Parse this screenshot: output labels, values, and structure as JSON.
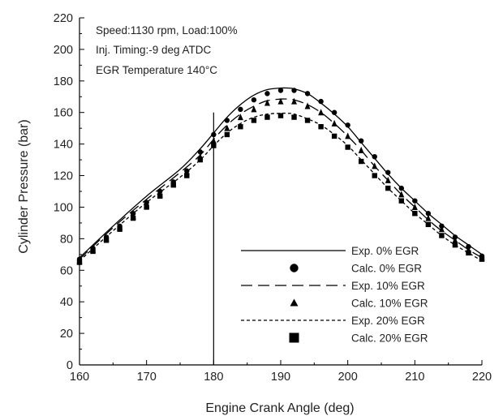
{
  "chart_data": {
    "type": "line",
    "title": "",
    "xlabel": "Engine Crank Angle (deg)",
    "ylabel": "Cylinder Pressure (bar)",
    "xlim": [
      160,
      220
    ],
    "ylim": [
      0,
      220
    ],
    "xticks": [
      160,
      170,
      180,
      190,
      200,
      210,
      220
    ],
    "yticks": [
      0,
      20,
      40,
      60,
      80,
      100,
      120,
      140,
      160,
      180,
      200,
      220
    ],
    "grid": false,
    "legend_position": "bottom-right",
    "annotations": [
      "Speed:1130 rpm, Load:100%",
      "Inj. Timing:-9 deg ATDC",
      "EGR Temperature 140°C"
    ],
    "vertical_marker": {
      "x": 180,
      "y_top": 160
    },
    "series": [
      {
        "name": "Exp. 0% EGR",
        "style": "solid",
        "color": "#000000",
        "x": [
          160,
          165,
          170,
          175,
          178,
          180,
          182,
          184,
          186,
          188,
          190,
          191,
          192,
          194,
          196,
          198,
          200,
          202,
          204,
          206,
          208,
          210,
          212,
          214,
          216,
          218,
          220
        ],
        "y": [
          68,
          88,
          107,
          124,
          137,
          147,
          157,
          165,
          171,
          174.5,
          175.5,
          175.5,
          175,
          172,
          166,
          159,
          151,
          141,
          131,
          121,
          112,
          104,
          96,
          89,
          82,
          76,
          70
        ]
      },
      {
        "name": "Calc. 0% EGR",
        "style": "marker",
        "marker": "circle",
        "color": "#000000",
        "x": [
          160,
          162,
          164,
          166,
          168,
          170,
          172,
          174,
          176,
          178,
          180,
          182,
          184,
          186,
          188,
          190,
          192,
          194,
          196,
          198,
          200,
          202,
          204,
          206,
          208,
          210,
          212,
          214,
          216,
          218,
          220
        ],
        "y": [
          67,
          74,
          81,
          88,
          96,
          103,
          110,
          116,
          123,
          135,
          146,
          155,
          162,
          168,
          172,
          174,
          174,
          172,
          167,
          160,
          152,
          142,
          132,
          122,
          112,
          104,
          96,
          88,
          81,
          75,
          69
        ]
      },
      {
        "name": "Exp. 10% EGR",
        "style": "longdash",
        "color": "#000000",
        "x": [
          160,
          165,
          170,
          175,
          178,
          180,
          182,
          184,
          186,
          188,
          190,
          191,
          192,
          194,
          196,
          198,
          200,
          202,
          204,
          206,
          208,
          210,
          212,
          214,
          216,
          218,
          220
        ],
        "y": [
          67,
          87,
          105,
          122,
          133,
          143,
          152,
          159,
          164,
          167.5,
          168.5,
          168.5,
          168,
          165,
          160,
          153,
          145,
          136,
          126,
          117,
          108,
          100,
          92,
          85,
          79,
          73,
          68
        ]
      },
      {
        "name": "Calc. 10% EGR",
        "style": "marker",
        "marker": "triangle",
        "color": "#000000",
        "x": [
          160,
          162,
          164,
          166,
          168,
          170,
          172,
          174,
          176,
          178,
          180,
          182,
          184,
          186,
          188,
          190,
          192,
          194,
          196,
          198,
          200,
          202,
          204,
          206,
          208,
          210,
          212,
          214,
          216,
          218,
          220
        ],
        "y": [
          66,
          73,
          80,
          87,
          94,
          101,
          108,
          115,
          122,
          132,
          142,
          150,
          157,
          162,
          166,
          167,
          167,
          164,
          160,
          153,
          145,
          136,
          126,
          117,
          108,
          100,
          93,
          86,
          79,
          73,
          68
        ]
      },
      {
        "name": "Exp. 20% EGR",
        "style": "shortdash",
        "color": "#000000",
        "x": [
          160,
          165,
          170,
          175,
          178,
          180,
          182,
          184,
          186,
          188,
          190,
          191,
          192,
          194,
          196,
          198,
          200,
          202,
          204,
          206,
          208,
          210,
          212,
          214,
          216,
          218,
          220
        ],
        "y": [
          66,
          85,
          103,
          119,
          130,
          139,
          147,
          153,
          157,
          159,
          159.5,
          159.5,
          159,
          156,
          152,
          146,
          139,
          130,
          121,
          112,
          104,
          96,
          89,
          82,
          76,
          71,
          66
        ]
      },
      {
        "name": "Calc. 20% EGR",
        "style": "marker",
        "marker": "square",
        "color": "#000000",
        "x": [
          160,
          162,
          164,
          166,
          168,
          170,
          172,
          174,
          176,
          178,
          180,
          182,
          184,
          186,
          188,
          190,
          192,
          194,
          196,
          198,
          200,
          202,
          204,
          206,
          208,
          210,
          212,
          214,
          216,
          218,
          220
        ],
        "y": [
          65,
          72,
          79,
          86,
          93,
          100,
          107,
          114,
          120,
          130,
          139,
          146,
          151,
          155,
          157,
          158,
          157,
          155,
          151,
          145,
          138,
          129,
          120,
          112,
          104,
          96,
          89,
          82,
          76,
          71,
          67
        ]
      }
    ]
  }
}
